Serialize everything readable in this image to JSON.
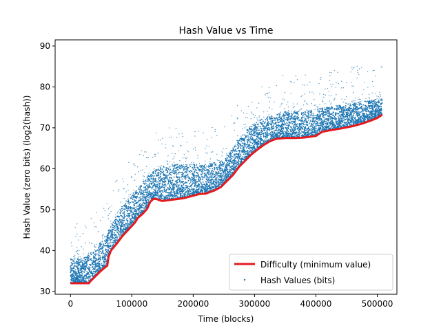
{
  "chart_data": {
    "type": "scatter",
    "title": "Hash Value vs Time",
    "xlabel": "Time (blocks)",
    "ylabel": "Hash Value (zero bits) (log2(hash))",
    "xlim": [
      -25000,
      532000
    ],
    "ylim": [
      29.3,
      91.5
    ],
    "xticks": [
      0,
      100000,
      200000,
      300000,
      400000,
      500000
    ],
    "xtick_labels": [
      "0",
      "100000",
      "200000",
      "300000",
      "400000",
      "500000"
    ],
    "yticks": [
      30,
      40,
      50,
      60,
      70,
      80,
      90
    ],
    "ytick_labels": [
      "30",
      "40",
      "50",
      "60",
      "70",
      "80",
      "90"
    ],
    "grid": false,
    "legend_position": "lower-right",
    "colors": {
      "difficulty": "#e41a1c",
      "hash": "#1f77b4"
    },
    "series": [
      {
        "name": "Difficulty (minimum value)",
        "kind": "line",
        "x": [
          0,
          30000,
          32000,
          40000,
          48000,
          55000,
          60000,
          62000,
          66000,
          75000,
          85000,
          95000,
          105000,
          110000,
          118000,
          125000,
          130000,
          135000,
          140000,
          145000,
          150000,
          160000,
          170000,
          185000,
          200000,
          210000,
          220000,
          235000,
          245000,
          255000,
          265000,
          275000,
          285000,
          295000,
          305000,
          315000,
          325000,
          335000,
          350000,
          365000,
          380000,
          390000,
          400000,
          410000,
          420000,
          440000,
          460000,
          475000,
          490000,
          500000,
          508000
        ],
        "y": [
          32,
          32,
          32.4,
          33.6,
          34.8,
          35.7,
          36.3,
          38.4,
          40.0,
          41.6,
          43.6,
          45.2,
          46.8,
          48.0,
          49.0,
          50.2,
          51.9,
          52.6,
          52.6,
          52.3,
          52.1,
          52.3,
          52.5,
          52.8,
          53.4,
          53.8,
          53.9,
          54.7,
          55.5,
          57.0,
          58.5,
          60.5,
          62.0,
          63.5,
          64.7,
          65.8,
          66.7,
          67.3,
          67.5,
          67.5,
          67.6,
          67.8,
          68.0,
          69.0,
          69.3,
          69.8,
          70.4,
          71.0,
          71.8,
          72.4,
          73.2
        ]
      },
      {
        "name": "Hash Values (bits)",
        "kind": "scatter",
        "upper_envelope": {
          "x": [
            0,
            20000,
            40000,
            55000,
            70000,
            90000,
            110000,
            125000,
            140000,
            160000,
            190000,
            220000,
            250000,
            270000,
            290000,
            310000,
            330000,
            350000,
            380000,
            420000,
            460000,
            500000,
            508000
          ],
          "y": [
            38,
            38,
            40,
            43,
            47,
            52,
            55,
            58,
            60,
            61,
            61,
            61,
            62,
            66,
            70,
            72,
            73,
            74,
            74,
            75,
            76,
            77,
            77
          ]
        }
      }
    ]
  }
}
